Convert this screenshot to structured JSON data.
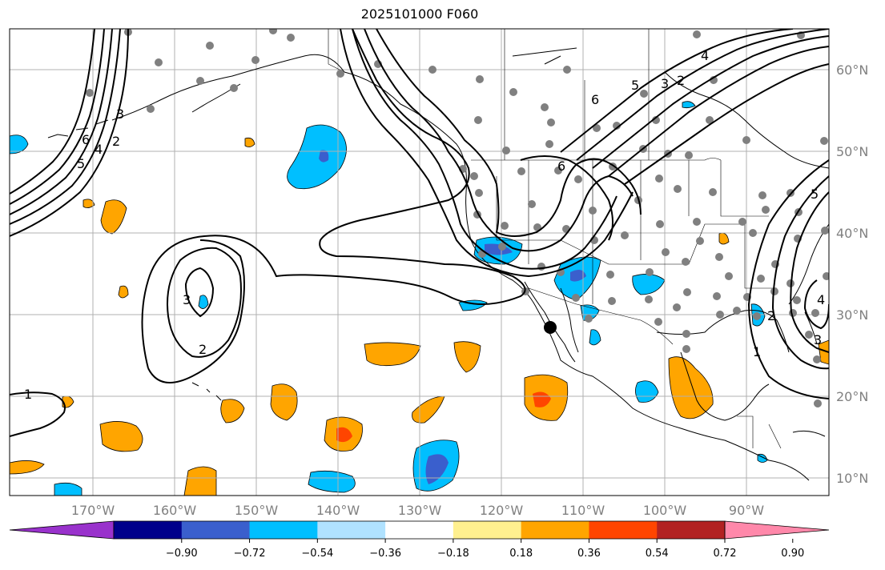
{
  "title": "2025101000 F060",
  "longitude_labels": [
    "170°W",
    "160°W",
    "150°W",
    "140°W",
    "130°W",
    "120°W",
    "110°W",
    "100°W",
    "90°W"
  ],
  "latitude_labels": [
    "60°N",
    "50°N",
    "40°N",
    "30°N",
    "20°N",
    "10°N"
  ],
  "colorbar": {
    "colors": [
      "#9932cc",
      "#00008b",
      "#3a5fcd",
      "#00bfff",
      "#b0e2ff",
      "#ffffff",
      "#fff08f",
      "#ffa500",
      "#ff4500",
      "#b22222",
      "#ff88aa"
    ],
    "tick_labels": [
      "−0.90",
      "−0.72",
      "−0.54",
      "−0.36",
      "−0.18",
      "0.18",
      "0.36",
      "0.54",
      "0.72",
      "0.90"
    ]
  },
  "contour_labels": [
    "1",
    "2",
    "3",
    "4",
    "5",
    "6"
  ],
  "colors": {
    "land_outline": "#000000",
    "grid": "#b0b0b0",
    "station": "#808080",
    "contour": "#000000"
  }
}
